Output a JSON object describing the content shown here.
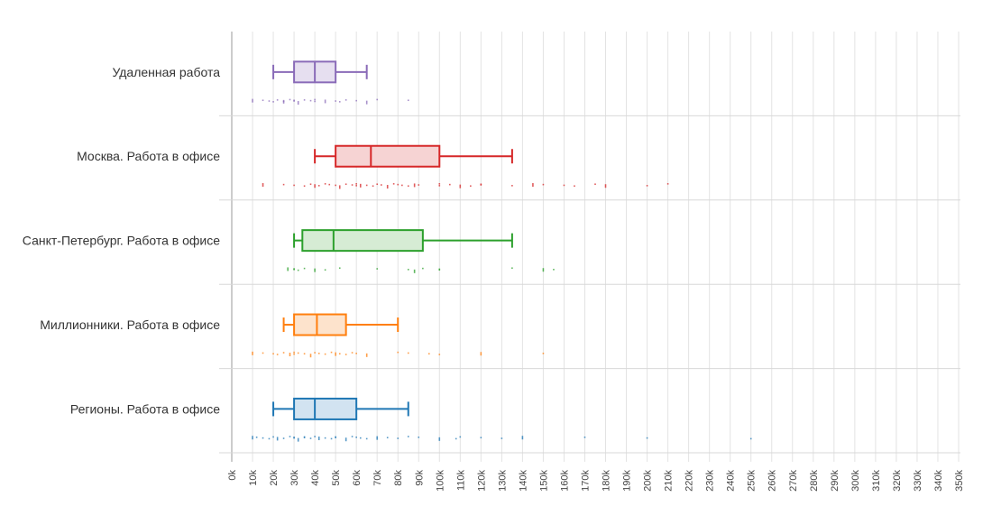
{
  "chart_data": {
    "type": "boxplot",
    "orientation": "horizontal",
    "x_ticks": [
      "0k",
      "10k",
      "20k",
      "30k",
      "40k",
      "50k",
      "60k",
      "70k",
      "80k",
      "90k",
      "100k",
      "110k",
      "120k",
      "130k",
      "140k",
      "150k",
      "160k",
      "170k",
      "180k",
      "190k",
      "200k",
      "210k",
      "220k",
      "230k",
      "240k",
      "250k",
      "260k",
      "270k",
      "280k",
      "290k",
      "300k",
      "310k",
      "320k",
      "330k",
      "340k",
      "350k"
    ],
    "xlim": [
      0,
      350000
    ],
    "grid": true,
    "series": [
      {
        "name": "Удаленная работа",
        "color": "#8a6bb8",
        "fill": "#e6dff0",
        "min": 20000,
        "q1": 30000,
        "median": 40000,
        "q3": 50000,
        "max": 65000,
        "points": [
          10000,
          15000,
          18000,
          20000,
          22000,
          25000,
          25000,
          28000,
          30000,
          30000,
          32000,
          35000,
          38000,
          40000,
          40000,
          45000,
          50000,
          52000,
          55000,
          60000,
          65000,
          70000,
          85000
        ]
      },
      {
        "name": "Москва. Работа в офисе",
        "color": "#d62728",
        "fill": "#f6d3d3",
        "min": 40000,
        "q1": 50000,
        "median": 67000,
        "q3": 100000,
        "max": 135000,
        "points": [
          15000,
          25000,
          30000,
          35000,
          38000,
          40000,
          42000,
          45000,
          47000,
          50000,
          52000,
          55000,
          58000,
          60000,
          60000,
          62000,
          65000,
          68000,
          70000,
          72000,
          75000,
          78000,
          80000,
          82000,
          85000,
          88000,
          90000,
          100000,
          100000,
          105000,
          110000,
          115000,
          120000,
          120000,
          135000,
          145000,
          150000,
          160000,
          165000,
          175000,
          180000,
          200000,
          210000
        ]
      },
      {
        "name": "Санкт-Петербург. Работа в офисе",
        "color": "#2ca02c",
        "fill": "#d6ecd4",
        "min": 30000,
        "q1": 34000,
        "median": 49000,
        "q3": 92000,
        "max": 135000,
        "points": [
          27000,
          30000,
          30000,
          32000,
          35000,
          40000,
          45000,
          52000,
          70000,
          85000,
          88000,
          92000,
          100000,
          100000,
          135000,
          150000,
          155000
        ]
      },
      {
        "name": "Миллионники. Работа в офисе",
        "color": "#ff7f0e",
        "fill": "#fde3cc",
        "min": 25000,
        "q1": 30000,
        "median": 41000,
        "q3": 55000,
        "max": 80000,
        "points": [
          10000,
          15000,
          20000,
          22000,
          25000,
          28000,
          30000,
          30000,
          32000,
          35000,
          38000,
          40000,
          42000,
          45000,
          48000,
          50000,
          52000,
          55000,
          58000,
          60000,
          65000,
          80000,
          85000,
          95000,
          100000,
          120000,
          150000
        ]
      },
      {
        "name": "Регионы. Работа в офисе",
        "color": "#1f77b4",
        "fill": "#d2e3f1",
        "min": 20000,
        "q1": 30000,
        "median": 40000,
        "q3": 60000,
        "max": 85000,
        "points": [
          10000,
          12000,
          15000,
          18000,
          20000,
          22000,
          25000,
          28000,
          30000,
          30000,
          32000,
          35000,
          35000,
          38000,
          40000,
          42000,
          45000,
          48000,
          50000,
          50000,
          55000,
          58000,
          60000,
          62000,
          65000,
          70000,
          75000,
          80000,
          85000,
          90000,
          100000,
          108000,
          110000,
          120000,
          130000,
          140000,
          170000,
          200000,
          250000
        ]
      }
    ]
  }
}
